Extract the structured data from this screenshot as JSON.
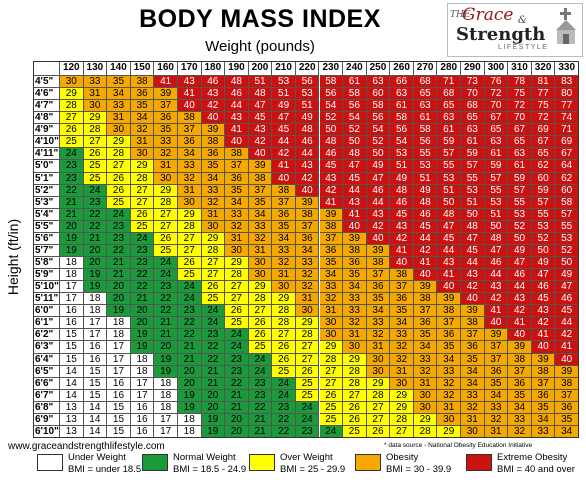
{
  "title": "BODY MASS INDEX",
  "subtitle": "Weight (pounds)",
  "ylabel": "Height (ft/in)",
  "website": "www.graceandstrengthlifestyle.com",
  "source_note": "* data source - National Obesity Education Initiative",
  "logo": {
    "text_the": "THE",
    "text_grace": "Grace",
    "text_amp": "&",
    "text_strength": "Strength",
    "text_lifestyle": "LIFESTYLE"
  },
  "colors": {
    "under": "#ffffff",
    "normal": "#1a9a3a",
    "over": "#ffff00",
    "obesity": "#f5a800",
    "extreme": "#cc1111"
  },
  "legend": [
    {
      "name": "Under Weight",
      "range": "BMI = under 18.5",
      "color": "#ffffff"
    },
    {
      "name": "Normal Weight",
      "range": "BMI = 18.5 - 24.9",
      "color": "#1a9a3a"
    },
    {
      "name": "Over Weight",
      "range": "BMI = 25 - 29.9",
      "color": "#ffff00"
    },
    {
      "name": "Obesity",
      "range": "BMI = 30 - 39.9",
      "color": "#f5a800"
    },
    {
      "name": "Extreme Obesity",
      "range": "BMI = 40 and over",
      "color": "#cc1111"
    }
  ],
  "chart_data": {
    "type": "heatmap",
    "title": "BODY MASS INDEX",
    "xlabel": "Weight (pounds)",
    "ylabel": "Height (ft/in)",
    "x": [
      "120",
      "130",
      "140",
      "150",
      "160",
      "170",
      "180",
      "190",
      "200",
      "210",
      "220",
      "230",
      "240",
      "250",
      "260",
      "270",
      "280",
      "290",
      "300",
      "310",
      "320",
      "330"
    ],
    "y": [
      "4'5\"",
      "4'6\"",
      "4'7\"",
      "4'8\"",
      "4'9\"",
      "4'10\"",
      "4'11\"",
      "5'0\"",
      "5'1\"",
      "5'2\"",
      "5'3\"",
      "5'4\"",
      "5'5\"",
      "5'6\"",
      "5'7\"",
      "5'8\"",
      "5'9\"",
      "5'10\"",
      "5'11\"",
      "6'0\"",
      "6'1\"",
      "6'2\"",
      "6'3\"",
      "6'4\"",
      "6'5\"",
      "6'6\"",
      "6'7\"",
      "6'8\"",
      "6'9\"",
      "6'10\""
    ],
    "values": [
      [
        30,
        33,
        35,
        38,
        41,
        43,
        46,
        48,
        51,
        53,
        56,
        58,
        61,
        63,
        66,
        68,
        71,
        73,
        76,
        78,
        81,
        83
      ],
      [
        29,
        31,
        34,
        36,
        39,
        41,
        43,
        46,
        48,
        51,
        53,
        56,
        58,
        60,
        63,
        65,
        68,
        70,
        72,
        75,
        77,
        80
      ],
      [
        28,
        30,
        33,
        35,
        37,
        40,
        42,
        44,
        47,
        49,
        51,
        54,
        56,
        58,
        61,
        63,
        65,
        68,
        70,
        72,
        75,
        77
      ],
      [
        27,
        29,
        31,
        34,
        36,
        38,
        40,
        43,
        45,
        47,
        49,
        52,
        54,
        56,
        58,
        61,
        63,
        65,
        67,
        70,
        72,
        74
      ],
      [
        26,
        28,
        30,
        32,
        35,
        37,
        39,
        41,
        43,
        45,
        48,
        50,
        52,
        54,
        56,
        58,
        61,
        63,
        65,
        67,
        69,
        71
      ],
      [
        25,
        27,
        29,
        31,
        33,
        36,
        38,
        40,
        42,
        44,
        46,
        48,
        50,
        52,
        54,
        56,
        59,
        61,
        63,
        65,
        67,
        69
      ],
      [
        24,
        26,
        28,
        30,
        32,
        34,
        36,
        38,
        40,
        42,
        44,
        46,
        48,
        50,
        53,
        55,
        57,
        59,
        61,
        63,
        65,
        67
      ],
      [
        23,
        25,
        27,
        29,
        31,
        33,
        35,
        37,
        39,
        41,
        43,
        45,
        47,
        49,
        51,
        53,
        55,
        57,
        59,
        61,
        62,
        64
      ],
      [
        23,
        25,
        26,
        28,
        30,
        32,
        34,
        36,
        38,
        40,
        42,
        43,
        45,
        47,
        49,
        51,
        53,
        55,
        57,
        59,
        60,
        62
      ],
      [
        22,
        24,
        26,
        27,
        29,
        31,
        33,
        35,
        37,
        38,
        40,
        42,
        44,
        46,
        48,
        49,
        51,
        53,
        55,
        57,
        59,
        60
      ],
      [
        21,
        23,
        25,
        27,
        28,
        30,
        32,
        34,
        35,
        37,
        39,
        41,
        43,
        44,
        46,
        48,
        50,
        51,
        53,
        55,
        57,
        58
      ],
      [
        21,
        22,
        24,
        26,
        27,
        29,
        31,
        33,
        34,
        36,
        38,
        39,
        41,
        43,
        45,
        46,
        48,
        50,
        51,
        53,
        55,
        57
      ],
      [
        20,
        22,
        23,
        25,
        27,
        28,
        30,
        32,
        33,
        35,
        37,
        38,
        40,
        42,
        43,
        45,
        47,
        48,
        50,
        52,
        53,
        55
      ],
      [
        19,
        21,
        23,
        24,
        26,
        27,
        29,
        31,
        32,
        34,
        36,
        37,
        39,
        40,
        42,
        44,
        45,
        47,
        48,
        50,
        52,
        53
      ],
      [
        19,
        20,
        22,
        23,
        25,
        27,
        28,
        30,
        31,
        33,
        34,
        36,
        38,
        39,
        41,
        42,
        44,
        45,
        47,
        49,
        50,
        52
      ],
      [
        18,
        20,
        21,
        23,
        24,
        26,
        27,
        29,
        30,
        32,
        33,
        35,
        36,
        38,
        40,
        41,
        43,
        44,
        46,
        47,
        49,
        50
      ],
      [
        18,
        19,
        21,
        22,
        24,
        25,
        27,
        28,
        30,
        31,
        32,
        34,
        35,
        37,
        38,
        40,
        41,
        43,
        44,
        46,
        47,
        49
      ],
      [
        17,
        19,
        20,
        22,
        23,
        24,
        26,
        27,
        29,
        30,
        32,
        33,
        34,
        36,
        37,
        39,
        40,
        42,
        43,
        44,
        46,
        47
      ],
      [
        17,
        18,
        20,
        21,
        22,
        24,
        25,
        27,
        28,
        29,
        31,
        32,
        33,
        35,
        36,
        38,
        39,
        40,
        42,
        43,
        45,
        46
      ],
      [
        16,
        18,
        19,
        20,
        22,
        23,
        24,
        26,
        27,
        28,
        30,
        31,
        33,
        34,
        35,
        37,
        38,
        39,
        41,
        42,
        43,
        45
      ],
      [
        16,
        17,
        18,
        20,
        21,
        22,
        24,
        25,
        26,
        28,
        29,
        30,
        32,
        33,
        34,
        36,
        37,
        38,
        40,
        41,
        42,
        44
      ],
      [
        15,
        17,
        18,
        19,
        21,
        22,
        23,
        24,
        26,
        27,
        28,
        30,
        31,
        32,
        33,
        35,
        36,
        37,
        39,
        40,
        41,
        42
      ],
      [
        15,
        16,
        17,
        19,
        20,
        21,
        22,
        24,
        25,
        26,
        27,
        29,
        30,
        31,
        32,
        34,
        35,
        36,
        37,
        39,
        40,
        41
      ],
      [
        15,
        16,
        17,
        18,
        19,
        21,
        22,
        23,
        24,
        26,
        27,
        28,
        29,
        30,
        32,
        33,
        34,
        35,
        37,
        38,
        39,
        40
      ],
      [
        14,
        15,
        17,
        18,
        19,
        20,
        21,
        23,
        24,
        25,
        26,
        27,
        28,
        30,
        31,
        32,
        33,
        34,
        36,
        37,
        38,
        39
      ],
      [
        14,
        15,
        16,
        17,
        18,
        20,
        21,
        22,
        23,
        24,
        25,
        27,
        28,
        29,
        30,
        31,
        32,
        34,
        35,
        36,
        37,
        38
      ],
      [
        14,
        15,
        16,
        17,
        18,
        19,
        20,
        21,
        23,
        24,
        25,
        26,
        27,
        28,
        29,
        30,
        32,
        33,
        34,
        35,
        36,
        37
      ],
      [
        13,
        14,
        15,
        16,
        18,
        19,
        20,
        21,
        22,
        23,
        24,
        25,
        26,
        27,
        29,
        30,
        31,
        32,
        33,
        34,
        35,
        36
      ],
      [
        13,
        14,
        15,
        16,
        17,
        18,
        19,
        20,
        21,
        22,
        24,
        25,
        26,
        27,
        28,
        29,
        30,
        31,
        32,
        33,
        34,
        35
      ],
      [
        13,
        14,
        15,
        16,
        17,
        18,
        19,
        20,
        21,
        22,
        23,
        24,
        25,
        26,
        27,
        28,
        29,
        30,
        31,
        32,
        33,
        34
      ]
    ]
  }
}
